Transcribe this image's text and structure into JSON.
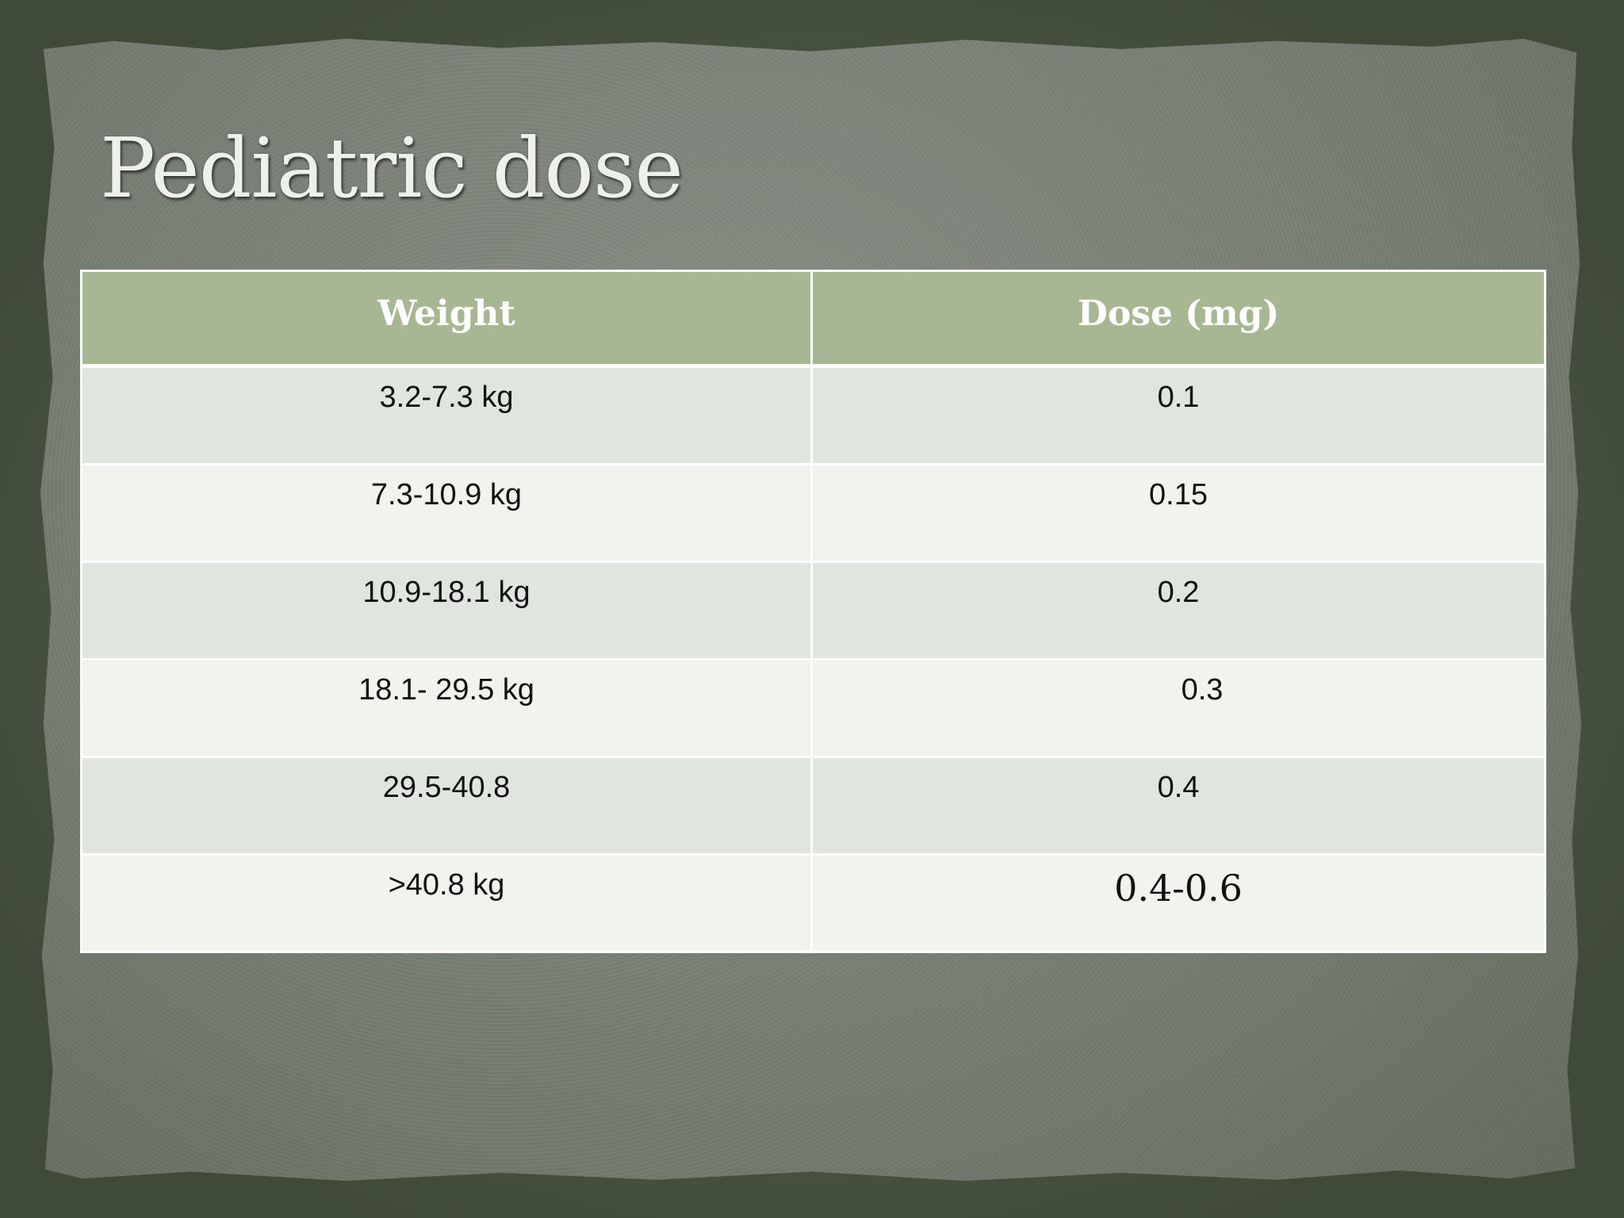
{
  "slide": {
    "title": "Pediatric dose"
  },
  "table": {
    "headers": [
      "Weight",
      "Dose (mg)"
    ],
    "rows": [
      {
        "weight": "3.2-7.3 kg",
        "dose": "0.1"
      },
      {
        "weight": "7.3-10.9 kg",
        "dose": "0.15"
      },
      {
        "weight": "10.9-18.1 kg",
        "dose": "0.2"
      },
      {
        "weight": "18.1- 29.5 kg",
        "dose": "0.3"
      },
      {
        "weight": "29.5-40.8",
        "dose": "0.4"
      },
      {
        "weight": ">40.8 kg",
        "dose": "0.4-0.6"
      }
    ]
  },
  "colors": {
    "background": "#56634c",
    "paper": "#7d8379",
    "header_fill": "#a8b793",
    "row_band_dark": "#e0e5df",
    "row_band_light": "#f1f3ee",
    "title_text": "#eef0ea"
  }
}
